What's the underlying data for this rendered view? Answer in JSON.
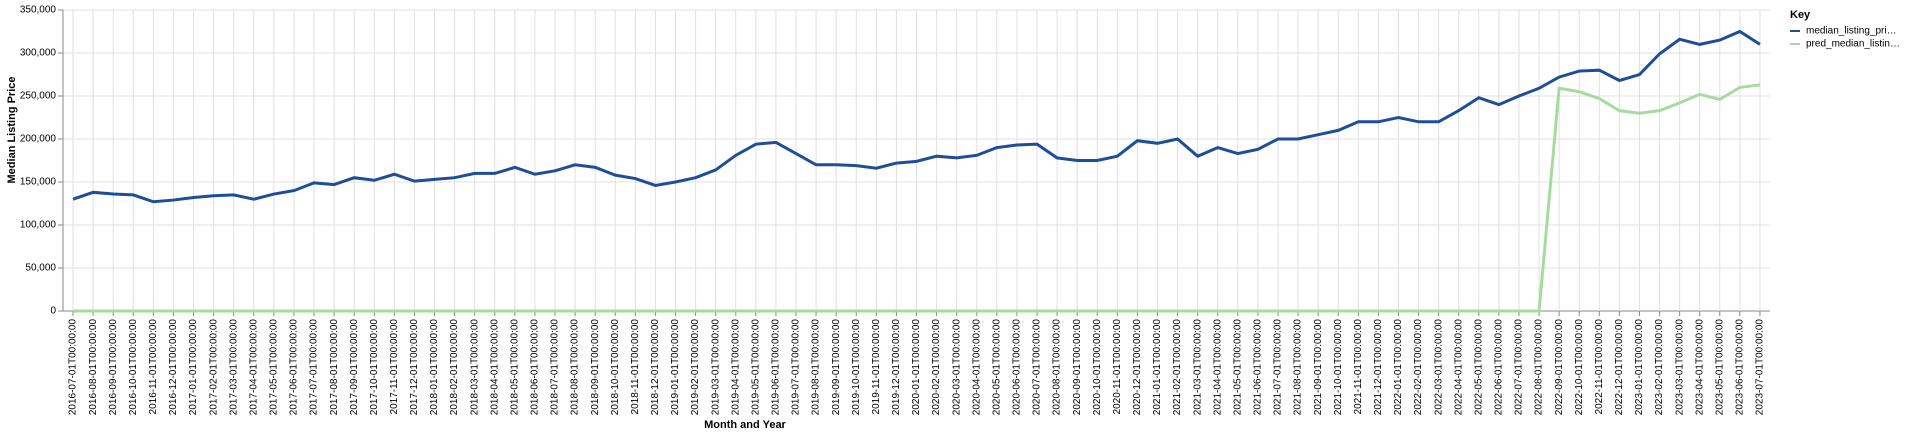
{
  "chart_data": {
    "type": "line",
    "x_label": "Month and Year",
    "y_label": "Median Listing Price",
    "legend_title": "Key",
    "legend_position": "right",
    "grid": true,
    "categories": [
      "2016-07-01T00:00:00",
      "2016-08-01T00:00:00",
      "2016-09-01T00:00:00",
      "2016-10-01T00:00:00",
      "2016-11-01T00:00:00",
      "2016-12-01T00:00:00",
      "2017-01-01T00:00:00",
      "2017-02-01T00:00:00",
      "2017-03-01T00:00:00",
      "2017-04-01T00:00:00",
      "2017-05-01T00:00:00",
      "2017-06-01T00:00:00",
      "2017-07-01T00:00:00",
      "2017-08-01T00:00:00",
      "2017-09-01T00:00:00",
      "2017-10-01T00:00:00",
      "2017-11-01T00:00:00",
      "2017-12-01T00:00:00",
      "2018-01-01T00:00:00",
      "2018-02-01T00:00:00",
      "2018-03-01T00:00:00",
      "2018-04-01T00:00:00",
      "2018-05-01T00:00:00",
      "2018-06-01T00:00:00",
      "2018-07-01T00:00:00",
      "2018-08-01T00:00:00",
      "2018-09-01T00:00:00",
      "2018-10-01T00:00:00",
      "2018-11-01T00:00:00",
      "2018-12-01T00:00:00",
      "2019-01-01T00:00:00",
      "2019-02-01T00:00:00",
      "2019-03-01T00:00:00",
      "2019-04-01T00:00:00",
      "2019-05-01T00:00:00",
      "2019-06-01T00:00:00",
      "2019-07-01T00:00:00",
      "2019-08-01T00:00:00",
      "2019-09-01T00:00:00",
      "2019-10-01T00:00:00",
      "2019-11-01T00:00:00",
      "2019-12-01T00:00:00",
      "2020-01-01T00:00:00",
      "2020-02-01T00:00:00",
      "2020-03-01T00:00:00",
      "2020-04-01T00:00:00",
      "2020-05-01T00:00:00",
      "2020-06-01T00:00:00",
      "2020-07-01T00:00:00",
      "2020-08-01T00:00:00",
      "2020-09-01T00:00:00",
      "2020-10-01T00:00:00",
      "2020-11-01T00:00:00",
      "2020-12-01T00:00:00",
      "2021-01-01T00:00:00",
      "2021-02-01T00:00:00",
      "2021-03-01T00:00:00",
      "2021-04-01T00:00:00",
      "2021-05-01T00:00:00",
      "2021-06-01T00:00:00",
      "2021-07-01T00:00:00",
      "2021-08-01T00:00:00",
      "2021-09-01T00:00:00",
      "2021-10-01T00:00:00",
      "2021-11-01T00:00:00",
      "2021-12-01T00:00:00",
      "2022-01-01T00:00:00",
      "2022-02-01T00:00:00",
      "2022-03-01T00:00:00",
      "2022-04-01T00:00:00",
      "2022-05-01T00:00:00",
      "2022-06-01T00:00:00",
      "2022-07-01T00:00:00",
      "2022-08-01T00:00:00",
      "2022-09-01T00:00:00",
      "2022-10-01T00:00:00",
      "2022-11-01T00:00:00",
      "2022-12-01T00:00:00",
      "2023-01-01T00:00:00",
      "2023-02-01T00:00:00",
      "2023-03-01T00:00:00",
      "2023-04-01T00:00:00",
      "2023-05-01T00:00:00",
      "2023-06-01T00:00:00",
      "2023-07-01T00:00:00"
    ],
    "series": [
      {
        "name": "median_listing_pri…",
        "color": "#1f4e99",
        "values": [
          130000,
          138000,
          136000,
          135000,
          127000,
          129000,
          132000,
          134000,
          135000,
          130000,
          136000,
          140000,
          149000,
          147000,
          155000,
          152000,
          159000,
          151000,
          153000,
          155000,
          160000,
          160000,
          167000,
          159000,
          163000,
          170000,
          167000,
          158000,
          154000,
          146000,
          150000,
          155000,
          164000,
          181000,
          194000,
          196000,
          183000,
          170000,
          170000,
          169000,
          166000,
          172000,
          174000,
          180000,
          178000,
          181000,
          190000,
          193000,
          194000,
          178000,
          175000,
          175000,
          180000,
          198000,
          195000,
          200000,
          180000,
          190000,
          183000,
          188000,
          200000,
          200000,
          205000,
          210000,
          220000,
          220000,
          225000,
          220000,
          220000,
          233000,
          248000,
          240000,
          250000,
          259000,
          272000,
          279000,
          280000,
          268000,
          275000,
          299000,
          316000,
          310000,
          315000,
          325000,
          310000
        ]
      },
      {
        "name": "pred_median_listin…",
        "color": "#a5dc9d",
        "values": [
          0,
          0,
          0,
          0,
          0,
          0,
          0,
          0,
          0,
          0,
          0,
          0,
          0,
          0,
          0,
          0,
          0,
          0,
          0,
          0,
          0,
          0,
          0,
          0,
          0,
          0,
          0,
          0,
          0,
          0,
          0,
          0,
          0,
          0,
          0,
          0,
          0,
          0,
          0,
          0,
          0,
          0,
          0,
          0,
          0,
          0,
          0,
          0,
          0,
          0,
          0,
          0,
          0,
          0,
          0,
          0,
          0,
          0,
          0,
          0,
          0,
          0,
          0,
          0,
          0,
          0,
          0,
          0,
          0,
          0,
          0,
          0,
          0,
          0,
          259000,
          255000,
          247000,
          233000,
          230000,
          233000,
          242000,
          252000,
          246000,
          260000,
          263000
        ]
      }
    ],
    "ylim": [
      0,
      350000
    ],
    "yticks": [
      0,
      {
        "value": 50000,
        "label": "50,000"
      },
      {
        "value": 100000,
        "label": "100,000"
      },
      {
        "value": 150000,
        "label": "150,000"
      },
      {
        "value": 200000,
        "label": "200,000"
      },
      {
        "value": 250000,
        "label": "250,000"
      },
      {
        "value": 300000,
        "label": "300,000"
      },
      {
        "value": 350000,
        "label": "350,000"
      }
    ]
  }
}
